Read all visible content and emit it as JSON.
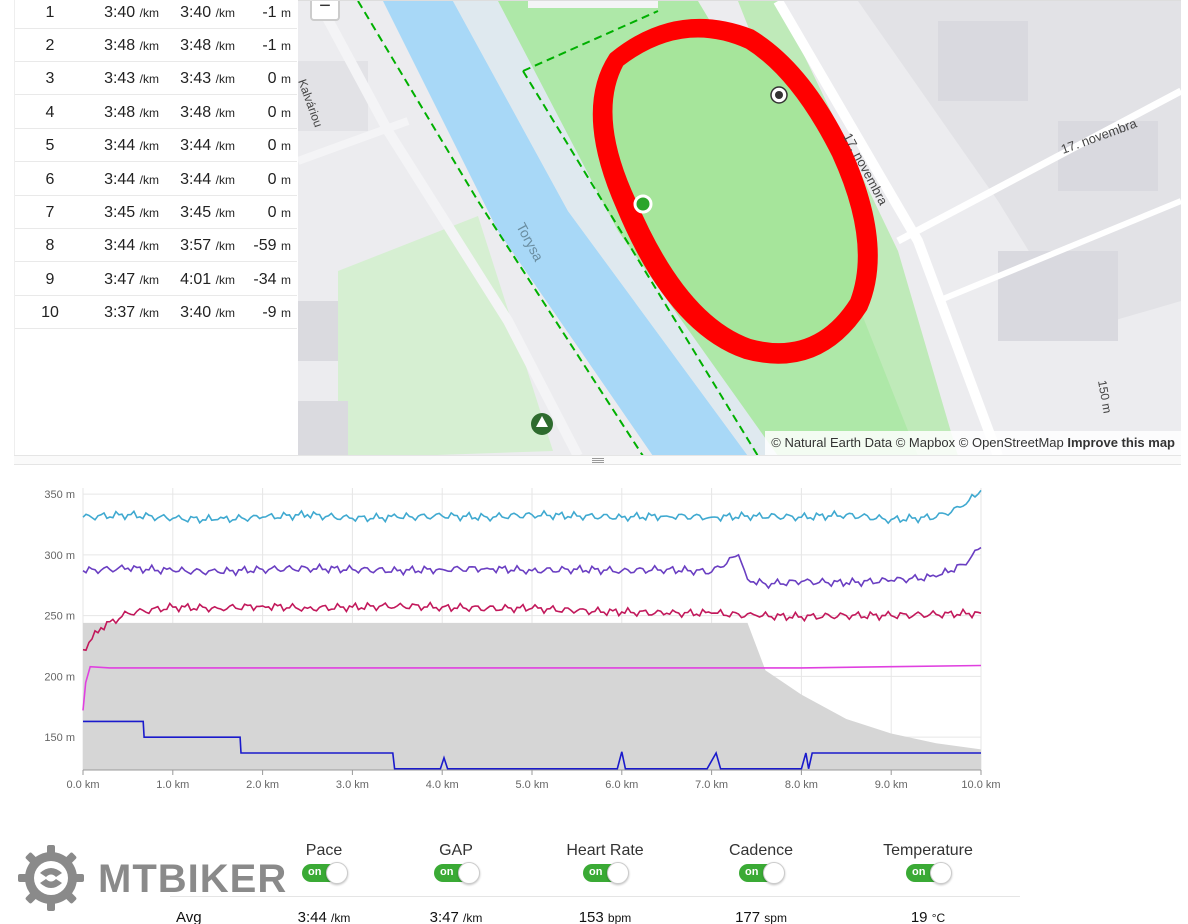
{
  "splits": [
    {
      "num": "1",
      "pace": "3:40",
      "gap": "3:40",
      "elev": "-1"
    },
    {
      "num": "2",
      "pace": "3:48",
      "gap": "3:48",
      "elev": "-1"
    },
    {
      "num": "3",
      "pace": "3:43",
      "gap": "3:43",
      "elev": "0"
    },
    {
      "num": "4",
      "pace": "3:48",
      "gap": "3:48",
      "elev": "0"
    },
    {
      "num": "5",
      "pace": "3:44",
      "gap": "3:44",
      "elev": "0"
    },
    {
      "num": "6",
      "pace": "3:44",
      "gap": "3:44",
      "elev": "0"
    },
    {
      "num": "7",
      "pace": "3:45",
      "gap": "3:45",
      "elev": "0"
    },
    {
      "num": "8",
      "pace": "3:44",
      "gap": "3:57",
      "elev": "-59"
    },
    {
      "num": "9",
      "pace": "3:47",
      "gap": "4:01",
      "elev": "-34"
    },
    {
      "num": "10",
      "pace": "3:37",
      "gap": "3:40",
      "elev": "-9"
    }
  ],
  "units": {
    "pace": "/km",
    "elev": "m",
    "hr": "bpm",
    "cadence": "spm",
    "temp": "°C"
  },
  "map": {
    "zoom_out": "−",
    "labels": {
      "river": "Torysa",
      "street1": "17. novembra",
      "street2": "17. novembra",
      "street3": "Kalváriou",
      "street4": "150 m"
    },
    "attribution": {
      "text": "© Natural Earth Data © Mapbox © OpenStreetMap",
      "improve": "Improve this map"
    },
    "colors": {
      "track": "#ff0000",
      "park": "#aee8a8",
      "water": "#a8d8f7",
      "land": "#ececef"
    }
  },
  "chart_data": {
    "type": "line",
    "y_ticks": [
      "350 m",
      "300 m",
      "250 m",
      "200 m",
      "150 m"
    ],
    "x_ticks": [
      "0.0 km",
      "1.0 km",
      "2.0 km",
      "3.0 km",
      "4.0 km",
      "5.0 km",
      "6.0 km",
      "7.0 km",
      "8.0 km",
      "9.0 km",
      "10.0 km"
    ],
    "xlim": [
      0,
      10
    ],
    "ylim": [
      123,
      355
    ],
    "grid": true,
    "series": [
      {
        "color": "#3fa9d0",
        "x": [
          0,
          0.5,
          1,
          1.5,
          2,
          2.5,
          3,
          3.5,
          4,
          4.5,
          5,
          5.5,
          6,
          6.5,
          7,
          7.5,
          8,
          8.5,
          9,
          9.5,
          9.8,
          10
        ],
        "values": [
          331,
          333,
          330,
          329,
          331,
          333,
          330,
          331,
          332,
          331,
          333,
          332,
          331,
          332,
          331,
          332,
          331,
          333,
          329,
          331,
          340,
          353
        ]
      },
      {
        "color": "#6a3ec2",
        "x": [
          0,
          0.5,
          1,
          1.5,
          2,
          2.5,
          3,
          3.5,
          4,
          4.5,
          5,
          5.5,
          6,
          6.5,
          7,
          7.3,
          7.4,
          7.6,
          8,
          8.5,
          9,
          9.5,
          9.8,
          10
        ],
        "values": [
          287,
          289,
          287,
          286,
          288,
          289,
          288,
          287,
          288,
          289,
          287,
          288,
          287,
          288,
          286,
          300,
          280,
          276,
          278,
          277,
          279,
          282,
          292,
          306
        ]
      },
      {
        "color": "#c2185b",
        "x": [
          0,
          0.2,
          0.5,
          1,
          1.5,
          2,
          2.5,
          3,
          3.5,
          4,
          4.5,
          5,
          5.5,
          6,
          6.5,
          7,
          7.5,
          8,
          8.5,
          9,
          9.5,
          10
        ],
        "values": [
          222,
          240,
          252,
          257,
          256,
          258,
          256,
          257,
          258,
          257,
          256,
          256,
          254,
          253,
          252,
          252,
          250,
          249,
          250,
          250,
          251,
          252
        ]
      },
      {
        "color": "#e040e0",
        "x": [
          0,
          0.03,
          0.08,
          0.3,
          1,
          2,
          3,
          4,
          5,
          6,
          7,
          8,
          9,
          10
        ],
        "values": [
          172,
          195,
          208,
          207,
          207,
          207,
          207,
          207,
          207,
          207,
          207,
          207,
          208,
          209
        ]
      },
      {
        "color": "#1a1acc",
        "x": [
          0,
          0.67,
          0.68,
          1.75,
          1.76,
          3.45,
          3.47,
          3.98,
          4.02,
          4.06,
          5.95,
          6.0,
          6.04,
          6.95,
          7.05,
          7.1,
          8.0,
          8.05,
          8.08,
          8.12,
          8.15,
          10
        ],
        "values": [
          163,
          163,
          150,
          150,
          137,
          137,
          124,
          124,
          133,
          124,
          124,
          138,
          124,
          124,
          137,
          124,
          124,
          137,
          124,
          137,
          137,
          137
        ]
      }
    ],
    "area": {
      "color": "#d6d6d6",
      "x": [
        0,
        0.1,
        7.4,
        7.6,
        8,
        8.5,
        9,
        9.5,
        10
      ],
      "values": [
        244,
        244,
        244,
        205,
        185,
        165,
        153,
        145,
        140
      ]
    }
  },
  "stats": {
    "avg_label": "Avg",
    "columns": [
      {
        "title": "Pace",
        "toggle": "on",
        "avg": "3:44",
        "unit": "/km"
      },
      {
        "title": "GAP",
        "toggle": "on",
        "avg": "3:47",
        "unit": "/km"
      },
      {
        "title": "Heart Rate",
        "toggle": "on",
        "avg": "153",
        "unit": "bpm"
      },
      {
        "title": "Cadence",
        "toggle": "on",
        "avg": "177",
        "unit": "spm"
      },
      {
        "title": "Temperature",
        "toggle": "on",
        "avg": "19",
        "unit": "°C"
      }
    ]
  },
  "logo": {
    "text": "MTBIKER"
  }
}
